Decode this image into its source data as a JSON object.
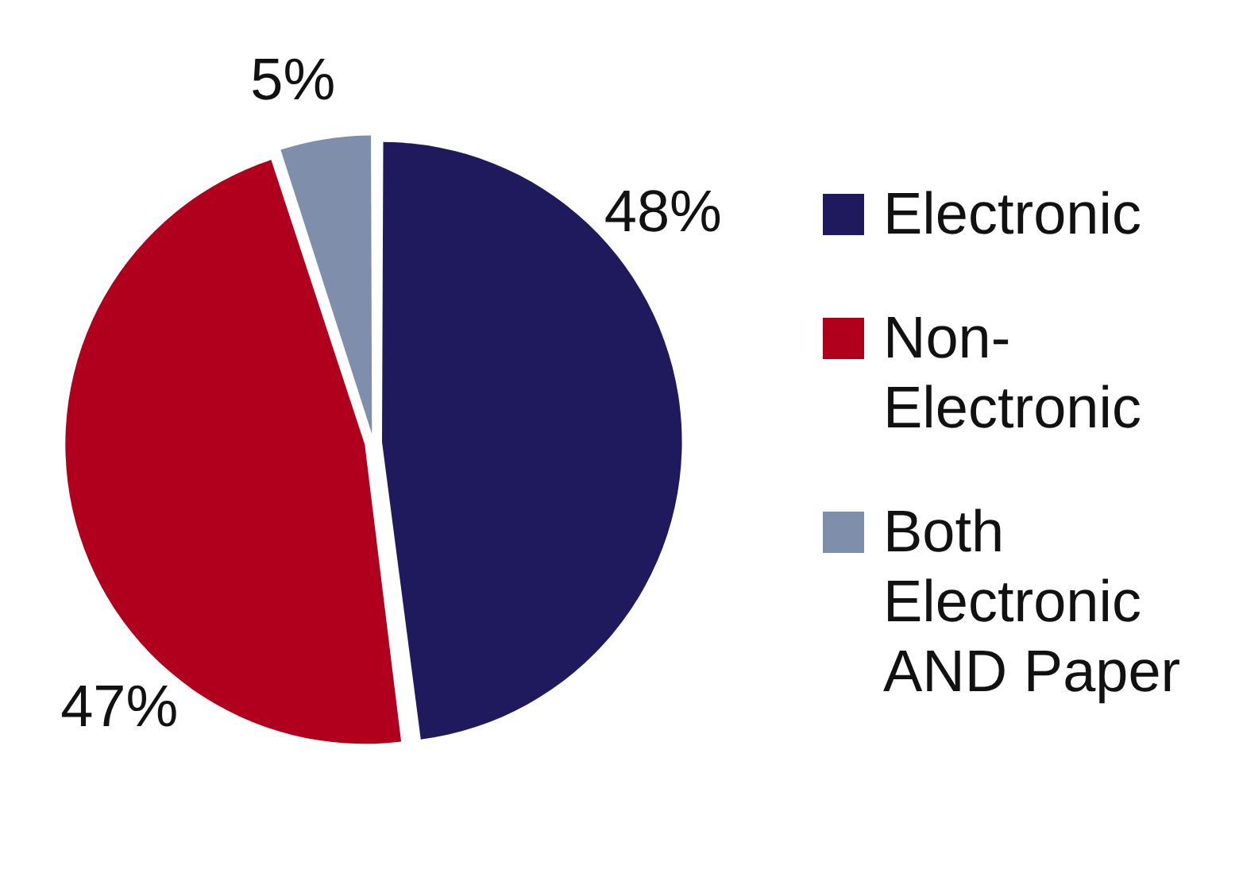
{
  "chart_data": {
    "type": "pie",
    "categories": [
      "Electronic",
      "Non-Electronic",
      "Both Electronic AND Paper"
    ],
    "values": [
      48,
      47,
      5
    ],
    "value_labels": [
      "48%",
      "47%",
      "5%"
    ],
    "colors": [
      "#1f1a5e",
      "#b0001e",
      "#7f8fab"
    ],
    "legend": "right"
  }
}
